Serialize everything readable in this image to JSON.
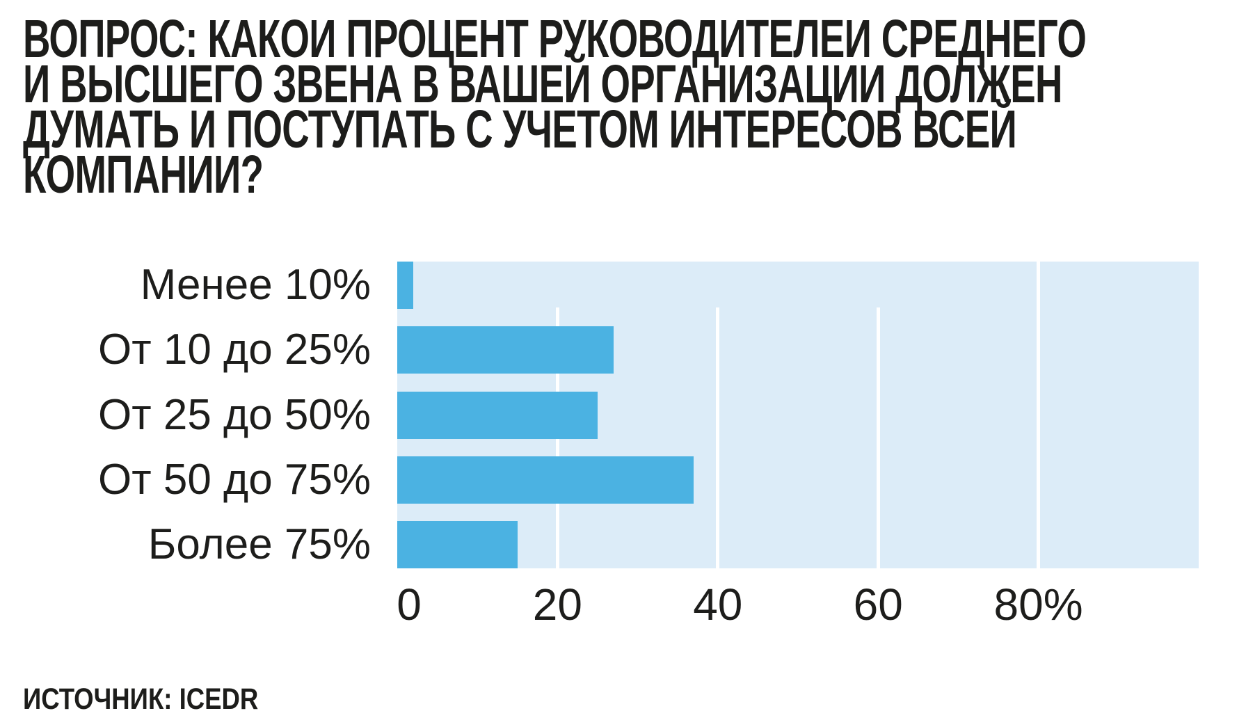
{
  "title": {
    "lines": [
      "ВОПРОС: КАКОИ ПРОЦЕНТ РУКОВОДИТЕЛЕИ СРЕДНЕГО",
      "И ВЫСШЕГО ЗВЕНА В ВАШЕЙ ОРГАНИЗАЦИИ ДОЛЖЕН",
      "ДУМАТЬ И ПОСТУПАТЬ С УЧЕТОМ ИНТЕРЕСОВ ВСЕЙ",
      "КОМПАНИИ?"
    ]
  },
  "source": "ИСТОЧНИК: ICEDR",
  "colors": {
    "bar": "#4bb2e2",
    "plot_background": "#dcecf8",
    "gridline": "#ffffff",
    "text": "#1d1d1b"
  },
  "chart_data": {
    "type": "bar",
    "orientation": "horizontal",
    "categories": [
      "Менее 10%",
      "От 10 до 25%",
      "От 25 до 50%",
      "От 50 до 75%",
      "Более 75%"
    ],
    "values": [
      2,
      27,
      25,
      37,
      15
    ],
    "value_unit": "%",
    "title": "ВОПРОС: КАКОИ ПРОЦЕНТ РУКОВОДИТЕЛЕИ СРЕДНЕГО И ВЫСШЕГО ЗВЕНА В ВАШЕЙ ОРГАНИЗАЦИИ ДОЛЖЕН ДУМАТЬ И ПОСТУПАТЬ С УЧЕТОМ ИНТЕРЕСОВ ВСЕЙ КОМПАНИИ?",
    "xlabel": "",
    "ylabel": "",
    "x_ticks": [
      {
        "value": 0,
        "label": "0"
      },
      {
        "value": 20,
        "label": "20"
      },
      {
        "value": 40,
        "label": "40"
      },
      {
        "value": 60,
        "label": "60"
      },
      {
        "value": 80,
        "label": "80%"
      }
    ],
    "xlim": [
      0,
      100
    ],
    "grid": "vertical white lines at 20/40/60/80, drawn behind bars",
    "legend": "none",
    "source": "ИСТОЧНИК: ICEDR"
  }
}
